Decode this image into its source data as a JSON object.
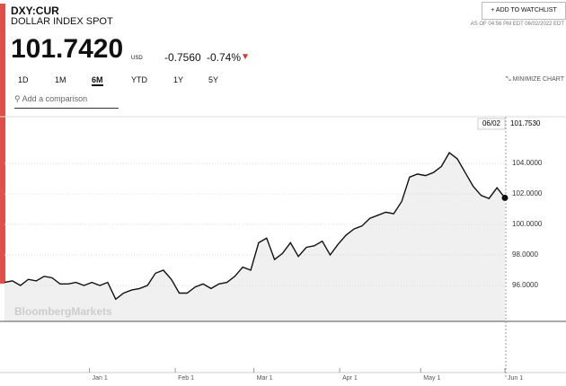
{
  "header": {
    "symbol": "DXY:CUR",
    "name": "DOLLAR INDEX SPOT",
    "watchlist": "ADD TO WATCHLIST",
    "as_of": "AS OF 04:56 PM EDT 06/02/2022 EDT",
    "price": "101.7420",
    "currency": "USD",
    "change": "-0.7560",
    "change_pct": "-0.74%"
  },
  "tabs": [
    "1D",
    "1M",
    "6M",
    "YTD",
    "1Y",
    "5Y"
  ],
  "minimize": "MINIMIZE CHART",
  "search_placeholder": "Add a comparison",
  "watermark": "BloombergMarkets",
  "crosshair": {
    "date": "06/02",
    "value": "101.7530"
  },
  "chart_data": {
    "type": "line",
    "color": "#111111",
    "fill": "#f0f0f0",
    "values": [
      96.2,
      96.3,
      96.0,
      96.4,
      96.3,
      96.6,
      96.5,
      96.1,
      96.1,
      96.2,
      96.0,
      96.2,
      96.0,
      96.2,
      95.1,
      95.5,
      95.7,
      95.8,
      96.0,
      96.8,
      97.0,
      96.4,
      95.5,
      95.5,
      95.9,
      96.1,
      95.8,
      96.1,
      96.2,
      96.6,
      97.2,
      97.0,
      98.8,
      99.1,
      97.7,
      98.1,
      98.8,
      97.9,
      98.5,
      98.6,
      98.9,
      98.0,
      98.7,
      99.3,
      99.7,
      99.9,
      100.4,
      100.6,
      100.8,
      100.7,
      101.5,
      103.1,
      103.3,
      103.2,
      103.4,
      103.8,
      104.7,
      104.3,
      103.4,
      102.5,
      101.9,
      101.7,
      102.4,
      101.742
    ],
    "xlim": [
      0,
      63
    ],
    "xticks": [
      {
        "value": 10.7,
        "label": "Jan 1"
      },
      {
        "value": 21.5,
        "label": "Feb 1"
      },
      {
        "value": 31.4,
        "label": "Mar 1"
      },
      {
        "value": 42.2,
        "label": "Apr 1"
      },
      {
        "value": 52.4,
        "label": "May 1"
      },
      {
        "value": 63,
        "label": "Jun 1"
      }
    ],
    "ylim": [
      93.65,
      107.06
    ],
    "yticks": [
      {
        "value": 96,
        "label": "96.0000"
      },
      {
        "value": 98,
        "label": "98.0000"
      },
      {
        "value": 100,
        "label": "100.0000"
      },
      {
        "value": 102,
        "label": "102.0000"
      },
      {
        "value": 104,
        "label": "104.0000"
      }
    ],
    "grid": true
  }
}
